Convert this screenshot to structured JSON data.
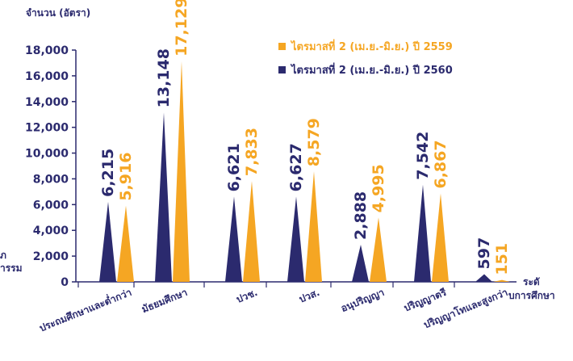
{
  "chart_data": {
    "type": "bar",
    "ylabel": "จำนวน (อัตรา)",
    "xlabel": "ระดับการศึกษา",
    "ylim": [
      0,
      18000
    ],
    "yticks": [
      0,
      2000,
      4000,
      6000,
      8000,
      10000,
      12000,
      14000,
      16000,
      18000
    ],
    "ytick_labels": [
      "0",
      "2,000",
      "4,000",
      "6,000",
      "8,000",
      "10,000",
      "12,000",
      "14,000",
      "16,000",
      "18,000"
    ],
    "categories": [
      "ประถมศึกษาและต่ำกว่า",
      "มัธยมศึกษา",
      "ปวช.",
      "ปวส.",
      "อนุปริญญา",
      "ปริญญาตรี",
      "ปริญญาโทและสูงกว่า"
    ],
    "series": [
      {
        "name": "ไตรมาสที่ 2 (เม.ย.-มิ.ย.) ปี 2560",
        "color": "#2b2a6e",
        "values": [
          6215,
          13148,
          6621,
          6627,
          2888,
          7542,
          597
        ],
        "labels": [
          "6,215",
          "13,148",
          "6,621",
          "6,627",
          "2,888",
          "7,542",
          "597"
        ]
      },
      {
        "name": "ไตรมาสที่ 2 (เม.ย.-มิ.ย.) ปี 2559",
        "color": "#f5a623",
        "values": [
          5916,
          17129,
          7833,
          8579,
          4995,
          6867,
          151
        ],
        "labels": [
          "5,916",
          "17,129",
          "7,833",
          "8,579",
          "4,995",
          "6,867",
          "151"
        ]
      }
    ],
    "legend": [
      {
        "label": "ไตรมาสที่ 2 (เม.ย.-มิ.ย.) ปี 2559",
        "color": "#f5a623"
      },
      {
        "label": "ไตรมาสที่ 2 (เม.ย.-มิ.ย.) ปี 2560",
        "color": "#2b2a6e"
      }
    ],
    "legend_position": "top-right",
    "grid": false,
    "left_partial_text": [
      "ภ",
      "ารรม"
    ]
  }
}
